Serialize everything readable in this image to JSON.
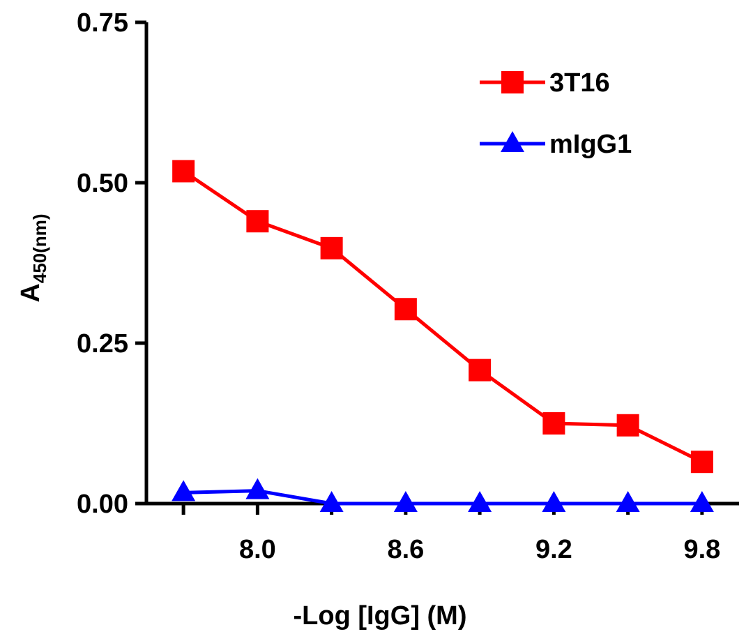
{
  "chart_data": {
    "type": "line",
    "title": "",
    "xlabel": "-Log [IgG] (M)",
    "ylabel": {
      "main": "A",
      "subscript": "450(nm)"
    },
    "x": [
      7.7,
      8.0,
      8.3,
      8.6,
      8.9,
      9.2,
      9.5,
      9.8
    ],
    "xlim": [
      7.55,
      9.95
    ],
    "xticks": [
      8.0,
      8.6,
      9.2,
      9.8
    ],
    "xtick_labels": [
      "8.0",
      "8.6",
      "9.2",
      "9.8"
    ],
    "ylim": [
      0,
      0.75
    ],
    "yticks": [
      0,
      0.25,
      0.5,
      0.75
    ],
    "ytick_labels": [
      "0.00",
      "0.25",
      "0.50",
      "0.75"
    ],
    "grid": false,
    "legend_position": "top-right",
    "series": [
      {
        "name": "3T16",
        "color": "#ff0000",
        "marker": "square",
        "values": [
          0.518,
          0.44,
          0.398,
          0.303,
          0.208,
          0.125,
          0.122,
          0.065
        ]
      },
      {
        "name": "mIgG1",
        "color": "#0000ff",
        "marker": "triangle",
        "values": [
          0.017,
          0.02,
          0.0,
          0.0,
          0.0,
          0.0,
          0.0,
          0.0
        ]
      }
    ]
  }
}
